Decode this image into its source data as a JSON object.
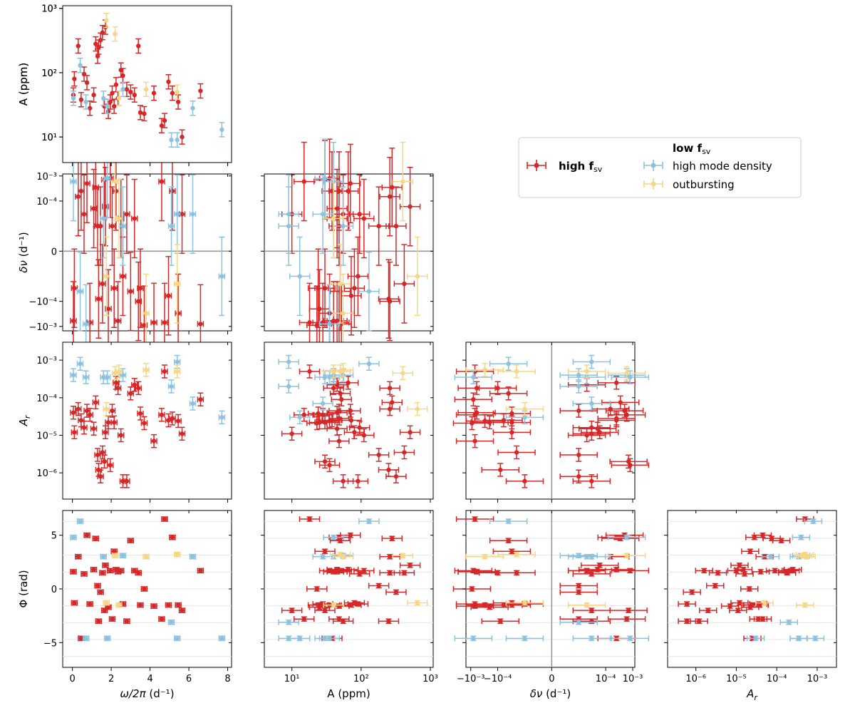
{
  "colors": {
    "high_fsv": "#d62728",
    "high_mode_density": "#8ec1de",
    "outbursting": "#f7d685",
    "zero_line": "#9a9a9a"
  },
  "legend": {
    "placement": "upper-right",
    "high_fsv_label": "high f",
    "high_fsv_sub": "sv",
    "low_fsv_label": "low f",
    "low_fsv_sub": "sv",
    "high_mode_density_label": "high mode density",
    "outbursting_label": "outbursting"
  },
  "axes": {
    "omega": {
      "label": "ω/2π",
      "unit": " (d⁻¹)",
      "scale": "linear",
      "lim": [
        -0.5,
        8.2
      ],
      "ticks": [
        "0",
        "2",
        "4",
        "6",
        "8"
      ],
      "tick_values": [
        0,
        2,
        4,
        6,
        8
      ]
    },
    "A": {
      "label": "A",
      "unit": " (ppm)",
      "scale": "log",
      "lim": [
        4,
        1100
      ],
      "ticks": [
        "10¹",
        "10²",
        "10³"
      ],
      "tick_values": [
        10,
        100,
        1000
      ]
    },
    "dnu": {
      "label": "δν",
      "unit": " (d⁻¹)",
      "scale": "symlog",
      "linthresh": 1e-05,
      "lim": [
        -0.0015,
        0.0012
      ],
      "ticks": [
        "−10⁻³",
        "−10⁻⁴",
        "0",
        "10⁻⁴",
        "10⁻³"
      ],
      "tick_values": [
        -0.001,
        -0.0001,
        0,
        0.0001,
        0.001
      ]
    },
    "Ar": {
      "label": "A",
      "label_sub": "r",
      "unit": "",
      "scale": "log",
      "lim": [
        2e-07,
        0.003
      ],
      "ticks": [
        "10⁻⁶",
        "10⁻⁵",
        "10⁻⁴",
        "10⁻³"
      ],
      "tick_values": [
        1e-06,
        1e-05,
        0.0001,
        0.001
      ]
    },
    "phi": {
      "label": "Φ",
      "unit": " (rad)",
      "scale": "linear",
      "lim": [
        -7.3,
        7.3
      ],
      "ticks": [
        "−5",
        "0",
        "5"
      ],
      "tick_values": [
        -5,
        0,
        5
      ]
    }
  },
  "chart_data": {
    "type": "scatter",
    "layout": "corner-plot",
    "variables": [
      "omega",
      "A",
      "dnu",
      "Ar",
      "phi"
    ],
    "series": [
      {
        "name": "high f",
        "name_sub": "sv",
        "color_key": "high_fsv",
        "points": [
          {
            "omega": 0.05,
            "A": 45,
            "dnu": -0.0006,
            "Ar": 4e-05,
            "phi": 1.6
          },
          {
            "omega": 0.1,
            "A": 80,
            "dnu": -3e-05,
            "Ar": 1.2e-05,
            "phi": -1.3
          },
          {
            "omega": 0.3,
            "A": 260,
            "dnu": 0.00015,
            "Ar": 5e-05,
            "phi": 3.0
          },
          {
            "omega": 0.45,
            "A": 38,
            "dnu": 0.00025,
            "Ar": 2.5e-05,
            "phi": -4.6
          },
          {
            "omega": 0.6,
            "A": 95,
            "dnu": 3e-05,
            "Ar": 1.6e-05,
            "phi": 1.4
          },
          {
            "omega": 0.75,
            "A": 70,
            "dnu": 0.0005,
            "Ar": 4.5e-05,
            "phi": 5.0
          },
          {
            "omega": 0.9,
            "A": 28,
            "dnu": -0.0007,
            "Ar": 3.5e-05,
            "phi": -1.4
          },
          {
            "omega": 1.1,
            "A": 45,
            "dnu": 5e-05,
            "Ar": 1.5e-05,
            "phi": 1.8
          },
          {
            "omega": 1.2,
            "A": 280,
            "dnu": 0.00035,
            "Ar": 7.5e-05,
            "phi": 4.7
          },
          {
            "omega": 1.3,
            "A": 180,
            "dnu": 1e-05,
            "Ar": 3e-06,
            "phi": 0.3
          },
          {
            "omega": 1.35,
            "A": 250,
            "dnu": -8e-05,
            "Ar": 1.2e-06,
            "phi": -3.0
          },
          {
            "omega": 1.45,
            "A": 320,
            "dnu": 1e-05,
            "Ar": 8e-07,
            "phi": -0.3
          },
          {
            "omega": 1.55,
            "A": 420,
            "dnu": -2e-05,
            "Ar": 3.5e-06,
            "phi": 1.5
          },
          {
            "omega": 1.65,
            "A": 30,
            "dnu": 0.0007,
            "Ar": 2e-06,
            "phi": -2.0
          },
          {
            "omega": 1.7,
            "A": 510,
            "dnu": 6e-05,
            "Ar": 1.2e-05,
            "phi": 2.2
          },
          {
            "omega": 1.85,
            "A": 25,
            "dnu": -0.0002,
            "Ar": 2.2e-05,
            "phi": -1.7
          },
          {
            "omega": 1.95,
            "A": 35,
            "dnu": 0.0008,
            "Ar": 1.6e-06,
            "phi": 1.7
          },
          {
            "omega": 2.05,
            "A": 48,
            "dnu": 1e-05,
            "Ar": 4.5e-05,
            "phi": -2.8
          },
          {
            "omega": 2.15,
            "A": 30,
            "dnu": -3e-05,
            "Ar": 2.2e-05,
            "phi": 3.5
          },
          {
            "omega": 2.25,
            "A": 65,
            "dnu": 0.00025,
            "Ar": 0.00025,
            "phi": 1.8
          },
          {
            "omega": 2.35,
            "A": 40,
            "dnu": -0.0006,
            "Ar": 0.00018,
            "phi": 1.6
          },
          {
            "omega": 2.5,
            "A": 110,
            "dnu": 2e-05,
            "Ar": 1e-05,
            "phi": 1.7
          },
          {
            "omega": 2.6,
            "A": 90,
            "dnu": -1e-05,
            "Ar": 6e-07,
            "phi": -1.4
          },
          {
            "omega": 2.8,
            "A": 55,
            "dnu": 3e-05,
            "Ar": 6e-07,
            "phi": -3.0
          },
          {
            "omega": 3.0,
            "A": 50,
            "dnu": -4e-05,
            "Ar": 0.00013,
            "phi": 4.5
          },
          {
            "omega": 3.2,
            "A": 45,
            "dnu": 2e-05,
            "Ar": 0.00022,
            "phi": 1.7
          },
          {
            "omega": 3.4,
            "A": 260,
            "dnu": -0.0001,
            "Ar": 0.00018,
            "phi": 1.5
          },
          {
            "omega": 3.5,
            "A": 24,
            "dnu": -3e-05,
            "Ar": 3.8e-05,
            "phi": -1.5
          },
          {
            "omega": 3.7,
            "A": 23,
            "dnu": -0.0009,
            "Ar": 2.1e-05,
            "phi": 0.0
          },
          {
            "omega": 4.2,
            "A": 48,
            "dnu": -0.0007,
            "Ar": 7e-06,
            "phi": -1.6
          },
          {
            "omega": 4.6,
            "A": 15,
            "dnu": 0.0006,
            "Ar": 3.5e-05,
            "phi": -2.8
          },
          {
            "omega": 4.75,
            "A": 18,
            "dnu": -0.0007,
            "Ar": 0.0005,
            "phi": 6.5
          },
          {
            "omega": 4.95,
            "A": 72,
            "dnu": -6e-05,
            "Ar": 2.5e-05,
            "phi": -1.5
          },
          {
            "omega": 5.15,
            "A": 48,
            "dnu": 0.00025,
            "Ar": 2.8e-05,
            "phi": 4.8
          },
          {
            "omega": 5.45,
            "A": 35,
            "dnu": -0.0003,
            "Ar": 2.4e-05,
            "phi": -1.5
          },
          {
            "omega": 5.65,
            "A": 10,
            "dnu": 3e-05,
            "Ar": 1.1e-05,
            "phi": -2.0
          },
          {
            "omega": 6.6,
            "A": 52,
            "dnu": -0.0008,
            "Ar": 9e-05,
            "phi": 1.7
          }
        ]
      },
      {
        "name": "high mode density",
        "color_key": "high_mode_density",
        "points": [
          {
            "omega": 0.05,
            "A": 40,
            "dnu": 0.0006,
            "Ar": 0.0004,
            "phi": 4.8
          },
          {
            "omega": 0.4,
            "A": 130,
            "dnu": -4e-05,
            "Ar": 0.0008,
            "phi": 6.3
          },
          {
            "omega": 0.7,
            "A": 35,
            "dnu": -0.0008,
            "Ar": 0.00035,
            "phi": -4.6
          },
          {
            "omega": 1.6,
            "A": 40,
            "dnu": 2e-05,
            "Ar": 0.00035,
            "phi": 3.0
          },
          {
            "omega": 1.8,
            "A": 30,
            "dnu": 0.0008,
            "Ar": 0.00035,
            "phi": -4.6
          },
          {
            "omega": 2.6,
            "A": 55,
            "dnu": 1e-05,
            "Ar": 0.0004,
            "phi": 3.1
          },
          {
            "omega": 5.1,
            "A": 9,
            "dnu": 1e-05,
            "Ar": 0.0002,
            "phi": -3.1
          },
          {
            "omega": 5.4,
            "A": 9,
            "dnu": 3e-05,
            "Ar": 0.0009,
            "phi": -4.6
          },
          {
            "omega": 6.2,
            "A": 28,
            "dnu": 3e-05,
            "Ar": 7e-05,
            "phi": 3.0
          },
          {
            "omega": 7.7,
            "A": 13,
            "dnu": -1e-05,
            "Ar": 3e-05,
            "phi": -4.6
          }
        ]
      },
      {
        "name": "outbursting",
        "color_key": "outbursting",
        "points": [
          {
            "omega": 1.75,
            "A": 650,
            "dnu": -1e-05,
            "Ar": 5e-05,
            "phi": -1.3
          },
          {
            "omega": 2.2,
            "A": 400,
            "dnu": 0.0006,
            "Ar": 0.00045,
            "phi": 3.1
          },
          {
            "omega": 2.4,
            "A": 40,
            "dnu": 2e-05,
            "Ar": 0.0005,
            "phi": -1.5
          },
          {
            "omega": 3.8,
            "A": 55,
            "dnu": -0.0003,
            "Ar": 0.00055,
            "phi": 3.0
          },
          {
            "omega": 5.4,
            "A": 50,
            "dnu": -2e-05,
            "Ar": 0.0005,
            "phi": 3.2
          }
        ]
      }
    ]
  }
}
